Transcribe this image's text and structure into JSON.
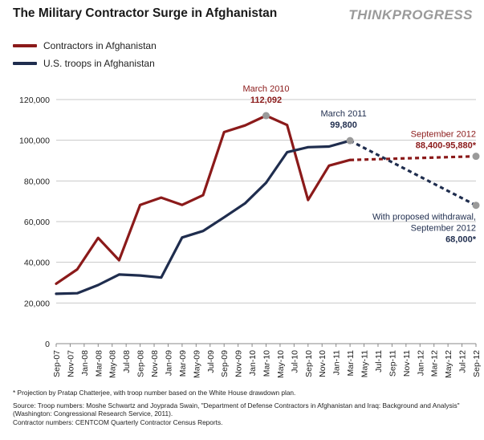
{
  "header": {
    "title": "The Military Contractor Surge in Afghanistan",
    "brand": "THINKPROGRESS"
  },
  "colors": {
    "contractors": "#8b1a1a",
    "troops": "#1f2d4e",
    "grid": "#c8c8c8",
    "projection_dot": "#9a9a9a"
  },
  "chart_data": {
    "type": "line",
    "title": "The Military Contractor Surge in Afghanistan",
    "xlabel": "",
    "ylabel": "",
    "ylim": [
      0,
      120000
    ],
    "yticks": [
      "0",
      "20,000",
      "40,000",
      "60,000",
      "80,000",
      "100,000",
      "120,000"
    ],
    "grid": true,
    "legend_position": "top-left",
    "categories": [
      "Sep-07",
      "Nov-07",
      "Jan-08",
      "Mar-08",
      "May-08",
      "Jul-08",
      "Sep-08",
      "Nov-08",
      "Jan-09",
      "Mar-09",
      "May-09",
      "Jul-09",
      "Sep-09",
      "Nov-09",
      "Jan-10",
      "Mar-10",
      "May-10",
      "Jul-10",
      "Sep-10",
      "Nov-10",
      "Jan-11",
      "Mar-11",
      "May-11",
      "Jul-11",
      "Sep-11",
      "Nov-11",
      "Jan-12",
      "Mar-12",
      "May-12",
      "Jul-12",
      "Sep-12"
    ],
    "series": [
      {
        "name": "Contractors in Afghanistan",
        "color": "#8b1a1a",
        "points": [
          {
            "x": "Sep-07",
            "y": 29500
          },
          {
            "x": "Dec-07",
            "y": 36500
          },
          {
            "x": "Mar-08",
            "y": 52000
          },
          {
            "x": "Jun-08",
            "y": 41000
          },
          {
            "x": "Sep-08",
            "y": 68200
          },
          {
            "x": "Dec-08",
            "y": 71800
          },
          {
            "x": "Mar-09",
            "y": 68200
          },
          {
            "x": "Jun-09",
            "y": 73000
          },
          {
            "x": "Sep-09",
            "y": 104000
          },
          {
            "x": "Dec-09",
            "y": 107300
          },
          {
            "x": "Mar-10",
            "y": 112092
          },
          {
            "x": "Jun-10",
            "y": 107500
          },
          {
            "x": "Sep-10",
            "y": 70600
          },
          {
            "x": "Dec-10",
            "y": 87500
          },
          {
            "x": "Mar-11",
            "y": 90300
          }
        ]
      },
      {
        "name": "U.S. troops in Afghanistan",
        "color": "#1f2d4e",
        "points": [
          {
            "x": "Sep-07",
            "y": 24500
          },
          {
            "x": "Dec-07",
            "y": 24800
          },
          {
            "x": "Mar-08",
            "y": 28800
          },
          {
            "x": "Jun-08",
            "y": 34000
          },
          {
            "x": "Sep-08",
            "y": 33500
          },
          {
            "x": "Dec-08",
            "y": 32500
          },
          {
            "x": "Mar-09",
            "y": 52200
          },
          {
            "x": "Jun-09",
            "y": 55400
          },
          {
            "x": "Sep-09",
            "y": 62100
          },
          {
            "x": "Dec-09",
            "y": 69000
          },
          {
            "x": "Mar-10",
            "y": 79100
          },
          {
            "x": "Jun-10",
            "y": 94100
          },
          {
            "x": "Sep-10",
            "y": 96600
          },
          {
            "x": "Dec-10",
            "y": 96900
          },
          {
            "x": "Mar-11",
            "y": 99800
          }
        ]
      }
    ],
    "projections": [
      {
        "series": "Contractors in Afghanistan",
        "from": {
          "x": "Mar-11",
          "y": 90300
        },
        "to": {
          "x": "Sep-12",
          "y": 92100
        }
      },
      {
        "series": "U.S. troops in Afghanistan",
        "from": {
          "x": "Mar-11",
          "y": 99800
        },
        "to": {
          "x": "Sep-12",
          "y": 68000
        }
      }
    ],
    "annotations": [
      {
        "lines": [
          "March 2010",
          "112,092"
        ],
        "x": "Mar-10",
        "y": 112092,
        "color": "#8b1a1a",
        "anchor": "middle"
      },
      {
        "lines": [
          "March 2011",
          "99,800"
        ],
        "x": "Mar-11",
        "y": 99800,
        "color": "#1f2d4e",
        "anchor": "middle"
      },
      {
        "lines": [
          "September 2012",
          "88,400-95,880*"
        ],
        "x": "Sep-12",
        "y": 92100,
        "color": "#8b1a1a",
        "anchor": "end"
      },
      {
        "lines": [
          "With proposed withdrawal,",
          "September 2012",
          "68,000*"
        ],
        "x": "Sep-12",
        "y": 68000,
        "color": "#1f2d4e",
        "anchor": "end"
      }
    ]
  },
  "footnotes": {
    "projection": "* Projection by Pratap Chatterjee, with troop number based on the White House drawdown plan.",
    "source": "Source: Troop numbers: Moshe Schwartz and Joyprada Swain, \"Department of Defense Contractors in Afghanistan and Iraq: Background and Analysis\" (Washington: Congressional Research Service, 2011).",
    "contractor_source": "Contractor numbers: CENTCOM Quarterly Contractor Census Reports."
  }
}
